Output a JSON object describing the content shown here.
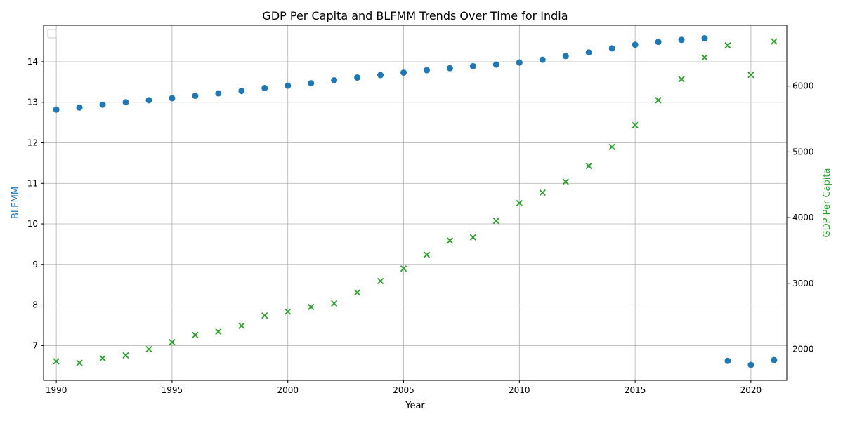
{
  "chart_data": {
    "type": "scatter",
    "title": "GDP Per Capita and BLFMM Trends Over Time for India",
    "xlabel": "Year",
    "ylabel_left": "BLFMM",
    "ylabel_right": "GDP Per Capita",
    "x": [
      1990,
      1991,
      1992,
      1993,
      1994,
      1995,
      1996,
      1997,
      1998,
      1999,
      2000,
      2001,
      2002,
      2003,
      2004,
      2005,
      2006,
      2007,
      2008,
      2009,
      2010,
      2011,
      2012,
      2013,
      2014,
      2015,
      2016,
      2017,
      2018,
      2019,
      2020,
      2021
    ],
    "xlim": [
      1989.45,
      2021.55
    ],
    "xticks": [
      "1990",
      "1995",
      "2000",
      "2005",
      "2010",
      "2015",
      "2020"
    ],
    "ylim_left": [
      6.14,
      14.9
    ],
    "yticks_left": [
      "7",
      "8",
      "9",
      "10",
      "11",
      "12",
      "13",
      "14"
    ],
    "ylim_right": [
      1525,
      6925
    ],
    "yticks_right": [
      "2000",
      "3000",
      "4000",
      "5000",
      "6000"
    ],
    "grid": true,
    "legend": "top-left, empty",
    "series": [
      {
        "name": "BLFMM",
        "axis": "left",
        "marker": "circle",
        "color": "#1f77b4",
        "values": [
          12.82,
          12.87,
          12.94,
          13.0,
          13.05,
          13.1,
          13.16,
          13.22,
          13.28,
          13.35,
          13.41,
          13.47,
          13.54,
          13.61,
          13.67,
          13.73,
          13.79,
          13.84,
          13.89,
          13.93,
          13.98,
          14.05,
          14.14,
          14.23,
          14.33,
          14.42,
          14.49,
          14.54,
          14.58,
          6.62,
          6.52,
          6.64
        ]
      },
      {
        "name": "GDP Per Capita",
        "axis": "right",
        "marker": "x",
        "color": "#2ca02c",
        "values": [
          1815,
          1790,
          1860,
          1905,
          2000,
          2105,
          2215,
          2265,
          2355,
          2510,
          2570,
          2640,
          2695,
          2860,
          3035,
          3225,
          3435,
          3650,
          3700,
          3950,
          4220,
          4380,
          4545,
          4785,
          5075,
          5405,
          5785,
          6105,
          6435,
          6620,
          6170,
          6680
        ]
      }
    ]
  }
}
